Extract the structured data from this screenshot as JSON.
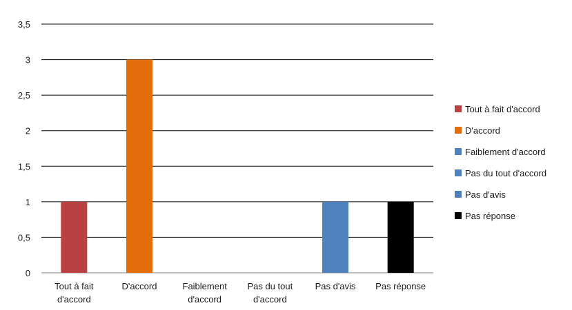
{
  "chart_data": {
    "type": "bar",
    "categories": [
      [
        "Tout à fait",
        "d'accord"
      ],
      [
        "D'accord"
      ],
      [
        "Faiblement",
        "d'accord"
      ],
      [
        "Pas du tout",
        "d'accord"
      ],
      [
        "Pas d'avis"
      ],
      [
        "Pas réponse"
      ]
    ],
    "values": [
      1,
      3,
      0,
      0,
      1,
      1
    ],
    "colors": [
      "#b94141",
      "#e46c0a",
      "#4f81bd",
      "#4f81bd",
      "#4f81bd",
      "#000000"
    ],
    "ylim": [
      0,
      3.5
    ],
    "yticks": [
      0,
      0.5,
      1,
      1.5,
      2,
      2.5,
      3,
      3.5
    ],
    "ytick_labels": [
      "0",
      "0,5",
      "1",
      "1,5",
      "2",
      "2,5",
      "3",
      "3,5"
    ],
    "grid": true,
    "legend_position": "right",
    "legend": [
      {
        "label": "Tout à fait d'accord",
        "color": "#b94141"
      },
      {
        "label": "D'accord",
        "color": "#e46c0a"
      },
      {
        "label": "Faiblement d'accord",
        "color": "#4f81bd"
      },
      {
        "label": "Pas du tout d'accord",
        "color": "#4f81bd"
      },
      {
        "label": "Pas d'avis",
        "color": "#4f81bd"
      },
      {
        "label": "Pas réponse",
        "color": "#000000"
      }
    ]
  }
}
